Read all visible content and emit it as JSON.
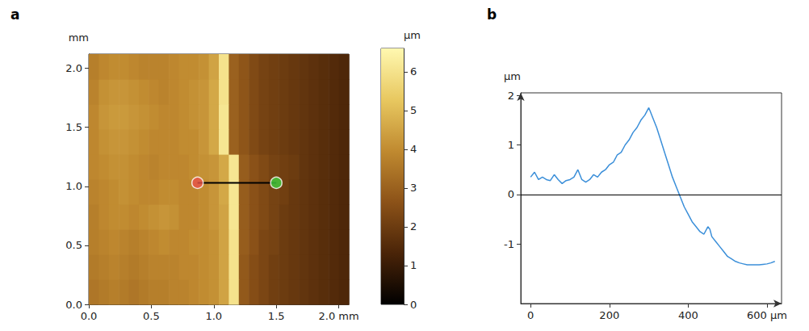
{
  "chart_data": [
    {
      "type": "heatmap",
      "panel": "a",
      "ylabel": "mm",
      "xlim": [
        0,
        2.08
      ],
      "xticks": [
        {
          "value": 0,
          "label": "0.0"
        },
        {
          "value": 0.5,
          "label": "0.5"
        },
        {
          "value": 1,
          "label": "1.0"
        },
        {
          "value": 1.5,
          "label": "1.5"
        },
        {
          "value": 2,
          "label": "2.0 mm"
        }
      ],
      "ylim": [
        0,
        2.12
      ],
      "yticks": [
        {
          "value": 0,
          "label": "0.0"
        },
        {
          "value": 0.5,
          "label": "0.5"
        },
        {
          "value": 1,
          "label": "1.0"
        },
        {
          "value": 1.5,
          "label": "1.5"
        },
        {
          "value": 2,
          "label": "2.0"
        }
      ],
      "heatmap": {
        "x": [
          0.04,
          0.12,
          0.2,
          0.28,
          0.36,
          0.44,
          0.52,
          0.6,
          0.68,
          0.76,
          0.84,
          0.92,
          1.0,
          1.08,
          1.16,
          1.24,
          1.32,
          1.4,
          1.48,
          1.56,
          1.64,
          1.72,
          1.8,
          1.88,
          1.96,
          2.04
        ],
        "y": [
          0.106,
          0.318,
          0.53,
          0.742,
          0.954,
          1.166,
          1.378,
          1.59,
          1.802,
          2.014
        ],
        "z": [
          [
            3.5,
            3.6,
            3.7,
            3.6,
            3.5,
            3.6,
            3.7,
            3.7,
            3.8,
            3.8,
            3.9,
            4.0,
            4.1,
            4.5,
            6.0,
            2.8,
            2.5,
            2.3,
            2.1,
            2.0,
            1.9,
            1.8,
            1.7,
            1.6,
            1.5,
            1.4
          ],
          [
            3.6,
            3.7,
            3.8,
            3.7,
            3.6,
            3.7,
            3.8,
            3.8,
            3.8,
            3.9,
            3.9,
            4.0,
            4.1,
            4.5,
            6.0,
            2.8,
            2.5,
            2.3,
            2.1,
            2.0,
            1.9,
            1.8,
            1.7,
            1.6,
            1.5,
            1.4
          ],
          [
            3.7,
            3.8,
            3.9,
            3.8,
            3.7,
            3.8,
            3.9,
            4.0,
            3.9,
            3.9,
            4.0,
            4.0,
            4.1,
            4.5,
            6.0,
            2.9,
            2.6,
            2.3,
            2.2,
            2.0,
            1.9,
            1.8,
            1.7,
            1.6,
            1.5,
            1.4
          ],
          [
            3.7,
            3.9,
            4.0,
            4.0,
            3.9,
            4.0,
            4.1,
            4.2,
            4.1,
            3.9,
            3.9,
            4.0,
            4.2,
            4.5,
            6.1,
            2.9,
            2.6,
            2.4,
            2.2,
            2.0,
            1.9,
            1.8,
            1.7,
            1.6,
            1.5,
            1.4
          ],
          [
            3.8,
            3.9,
            4.0,
            4.1,
            4.0,
            3.9,
            3.9,
            4.0,
            4.0,
            3.9,
            3.9,
            4.0,
            4.2,
            4.6,
            6.1,
            2.9,
            2.6,
            2.4,
            2.2,
            2.1,
            1.9,
            1.8,
            1.7,
            1.6,
            1.5,
            1.4
          ],
          [
            3.9,
            4.0,
            4.1,
            4.1,
            4.0,
            3.9,
            3.8,
            3.9,
            3.9,
            3.9,
            4.0,
            4.1,
            4.2,
            4.6,
            6.1,
            2.9,
            2.6,
            2.4,
            2.2,
            2.1,
            2.0,
            1.8,
            1.7,
            1.6,
            1.5,
            1.4
          ],
          [
            3.9,
            4.1,
            4.2,
            4.2,
            4.1,
            4.0,
            3.9,
            3.9,
            3.9,
            4.0,
            4.0,
            4.2,
            4.6,
            6.1,
            3.0,
            2.7,
            2.4,
            2.2,
            2.1,
            2.0,
            1.9,
            1.8,
            1.7,
            1.6,
            1.5,
            1.4
          ],
          [
            3.9,
            4.2,
            4.3,
            4.3,
            4.2,
            4.1,
            4.0,
            3.9,
            3.9,
            4.0,
            4.1,
            4.2,
            4.6,
            6.1,
            3.0,
            2.7,
            2.4,
            2.2,
            2.1,
            2.0,
            1.9,
            1.8,
            1.7,
            1.6,
            1.5,
            1.4
          ],
          [
            3.8,
            4.1,
            4.2,
            4.2,
            4.1,
            4.0,
            3.9,
            3.8,
            3.9,
            4.0,
            4.1,
            4.2,
            4.6,
            6.0,
            3.0,
            2.7,
            2.4,
            2.2,
            2.1,
            2.0,
            1.9,
            1.8,
            1.7,
            1.6,
            1.5,
            1.4
          ],
          [
            3.7,
            3.9,
            4.0,
            4.0,
            3.9,
            3.8,
            3.8,
            3.8,
            3.9,
            4.0,
            4.0,
            4.1,
            4.5,
            6.0,
            3.0,
            2.7,
            2.4,
            2.2,
            2.1,
            2.0,
            1.9,
            1.8,
            1.7,
            1.6,
            1.5,
            1.4
          ]
        ]
      },
      "colorbar": {
        "title": "µm",
        "range": [
          0,
          6.6
        ],
        "ticks": [
          0,
          1,
          2,
          3,
          4,
          5,
          6
        ],
        "colors": [
          "#000000",
          "#4a2408",
          "#8c5218",
          "#c08a30",
          "#e8c860",
          "#fff8b0"
        ]
      },
      "profile_line": {
        "x": [
          0.87,
          1.5
        ],
        "y": [
          1.03,
          1.03
        ],
        "color": "#000000",
        "marker_colors": [
          "#e8524a",
          "#3fcf3f"
        ]
      }
    },
    {
      "type": "line",
      "panel": "b",
      "ylabel": "µm",
      "color": "#3b8fd9",
      "x": [
        0,
        10,
        20,
        30,
        40,
        50,
        60,
        70,
        80,
        90,
        100,
        110,
        120,
        130,
        140,
        150,
        160,
        170,
        180,
        190,
        200,
        210,
        220,
        230,
        240,
        250,
        260,
        270,
        280,
        290,
        300,
        305,
        310,
        320,
        330,
        340,
        350,
        360,
        370,
        380,
        390,
        400,
        410,
        420,
        430,
        440,
        450,
        455,
        460,
        470,
        480,
        490,
        500,
        510,
        520,
        530,
        540,
        550,
        560,
        570,
        580,
        590,
        600,
        610,
        620
      ],
      "values": [
        0.35,
        0.45,
        0.3,
        0.35,
        0.3,
        0.28,
        0.4,
        0.3,
        0.22,
        0.28,
        0.3,
        0.35,
        0.5,
        0.3,
        0.25,
        0.3,
        0.4,
        0.35,
        0.45,
        0.5,
        0.6,
        0.65,
        0.8,
        0.85,
        1.0,
        1.1,
        1.25,
        1.35,
        1.5,
        1.6,
        1.75,
        1.65,
        1.55,
        1.35,
        1.1,
        0.85,
        0.6,
        0.35,
        0.15,
        -0.05,
        -0.25,
        -0.4,
        -0.55,
        -0.65,
        -0.75,
        -0.8,
        -0.65,
        -0.7,
        -0.85,
        -0.95,
        -1.05,
        -1.15,
        -1.25,
        -1.3,
        -1.35,
        -1.38,
        -1.4,
        -1.42,
        -1.42,
        -1.42,
        -1.42,
        -1.41,
        -1.4,
        -1.38,
        -1.35
      ],
      "xlim": [
        -25,
        637
      ],
      "xticks": [
        0,
        200,
        400,
        {
          "value": 600,
          "label": "600 µm"
        }
      ],
      "ylim": [
        -2.2,
        2.05
      ],
      "yticks": [
        -1,
        0,
        1,
        2
      ],
      "baseline": 0
    }
  ]
}
